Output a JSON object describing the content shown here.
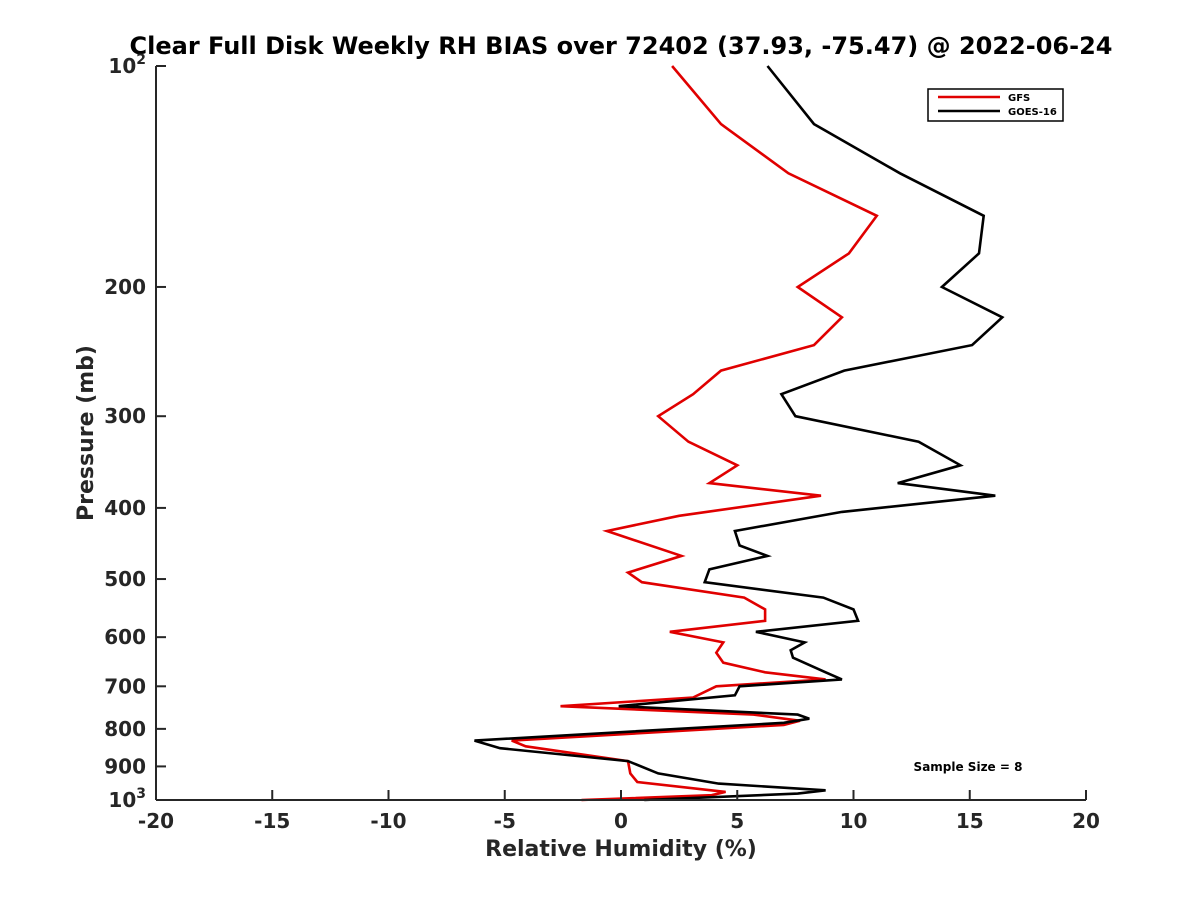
{
  "chart_data": {
    "type": "line",
    "title": "Clear Full Disk Weekly RH BIAS over 72402 (37.93, -75.47) @ 2022-06-24",
    "xlabel": "Relative Humidity (%)",
    "ylabel": "Pressure (mb)",
    "xlim": [
      -20,
      20
    ],
    "ylim": [
      100,
      1000
    ],
    "yscale": "log",
    "y_reversed": true,
    "x_ticks": [
      -20,
      -15,
      -10,
      -5,
      0,
      5,
      10,
      15,
      20
    ],
    "x_tick_labels": [
      "-20",
      "-15",
      "-10",
      "-5",
      "0",
      "5",
      "10",
      "15",
      "20"
    ],
    "y_ticks": [
      200,
      300,
      400,
      500,
      600,
      700,
      800,
      900
    ],
    "y_tick_labels": [
      "200",
      "300",
      "400",
      "500",
      "600",
      "700",
      "800",
      "900"
    ],
    "y_end_labels": [
      {
        "value": 100,
        "base": "10",
        "exp": "2"
      },
      {
        "value": 1000,
        "base": "10",
        "exp": "3"
      }
    ],
    "grid": false,
    "legend_position": "top-right",
    "annotation": "Sample Size = 8",
    "series": [
      {
        "name": "GFS",
        "color": "#e00000",
        "points": [
          [
            2.2,
            100
          ],
          [
            4.3,
            120
          ],
          [
            7.2,
            140
          ],
          [
            11.0,
            160
          ],
          [
            9.8,
            180
          ],
          [
            7.6,
            200
          ],
          [
            9.5,
            220
          ],
          [
            8.3,
            240
          ],
          [
            4.3,
            260
          ],
          [
            3.1,
            280
          ],
          [
            1.6,
            300
          ],
          [
            2.9,
            325
          ],
          [
            5.0,
            350
          ],
          [
            3.8,
            370
          ],
          [
            8.6,
            385
          ],
          [
            2.5,
            410
          ],
          [
            -0.6,
            430
          ],
          [
            2.6,
            465
          ],
          [
            0.3,
            490
          ],
          [
            0.9,
            505
          ],
          [
            5.3,
            530
          ],
          [
            6.2,
            550
          ],
          [
            6.2,
            570
          ],
          [
            2.1,
            590
          ],
          [
            4.4,
            610
          ],
          [
            4.1,
            630
          ],
          [
            4.4,
            650
          ],
          [
            6.2,
            670
          ],
          [
            8.8,
            685
          ],
          [
            4.1,
            700
          ],
          [
            3.1,
            725
          ],
          [
            -2.6,
            745
          ],
          [
            5.7,
            765
          ],
          [
            7.7,
            780
          ],
          [
            7.0,
            790
          ],
          [
            -4.7,
            830
          ],
          [
            -4.1,
            845
          ],
          [
            0.3,
            885
          ],
          [
            0.4,
            920
          ],
          [
            0.7,
            945
          ],
          [
            4.5,
            975
          ],
          [
            3.9,
            985
          ],
          [
            -1.7,
            1000
          ]
        ]
      },
      {
        "name": "GOES-16",
        "color": "#000000",
        "points": [
          [
            6.3,
            100
          ],
          [
            8.3,
            120
          ],
          [
            12.0,
            140
          ],
          [
            15.6,
            160
          ],
          [
            15.4,
            180
          ],
          [
            13.8,
            200
          ],
          [
            16.4,
            220
          ],
          [
            15.1,
            240
          ],
          [
            9.6,
            260
          ],
          [
            6.9,
            280
          ],
          [
            7.5,
            300
          ],
          [
            12.8,
            325
          ],
          [
            14.6,
            350
          ],
          [
            11.9,
            370
          ],
          [
            16.1,
            385
          ],
          [
            9.5,
            405
          ],
          [
            4.9,
            430
          ],
          [
            5.1,
            450
          ],
          [
            6.3,
            465
          ],
          [
            3.8,
            485
          ],
          [
            3.6,
            505
          ],
          [
            8.7,
            530
          ],
          [
            10.0,
            550
          ],
          [
            10.2,
            570
          ],
          [
            5.8,
            590
          ],
          [
            7.9,
            610
          ],
          [
            7.3,
            625
          ],
          [
            7.4,
            640
          ],
          [
            8.8,
            670
          ],
          [
            9.5,
            685
          ],
          [
            5.1,
            700
          ],
          [
            4.9,
            720
          ],
          [
            -0.1,
            745
          ],
          [
            7.6,
            765
          ],
          [
            8.1,
            775
          ],
          [
            7.0,
            785
          ],
          [
            -6.3,
            830
          ],
          [
            -5.2,
            850
          ],
          [
            0.3,
            885
          ],
          [
            1.6,
            920
          ],
          [
            4.2,
            950
          ],
          [
            8.8,
            970
          ],
          [
            7.6,
            980
          ],
          [
            1.0,
            1000
          ]
        ]
      }
    ]
  }
}
